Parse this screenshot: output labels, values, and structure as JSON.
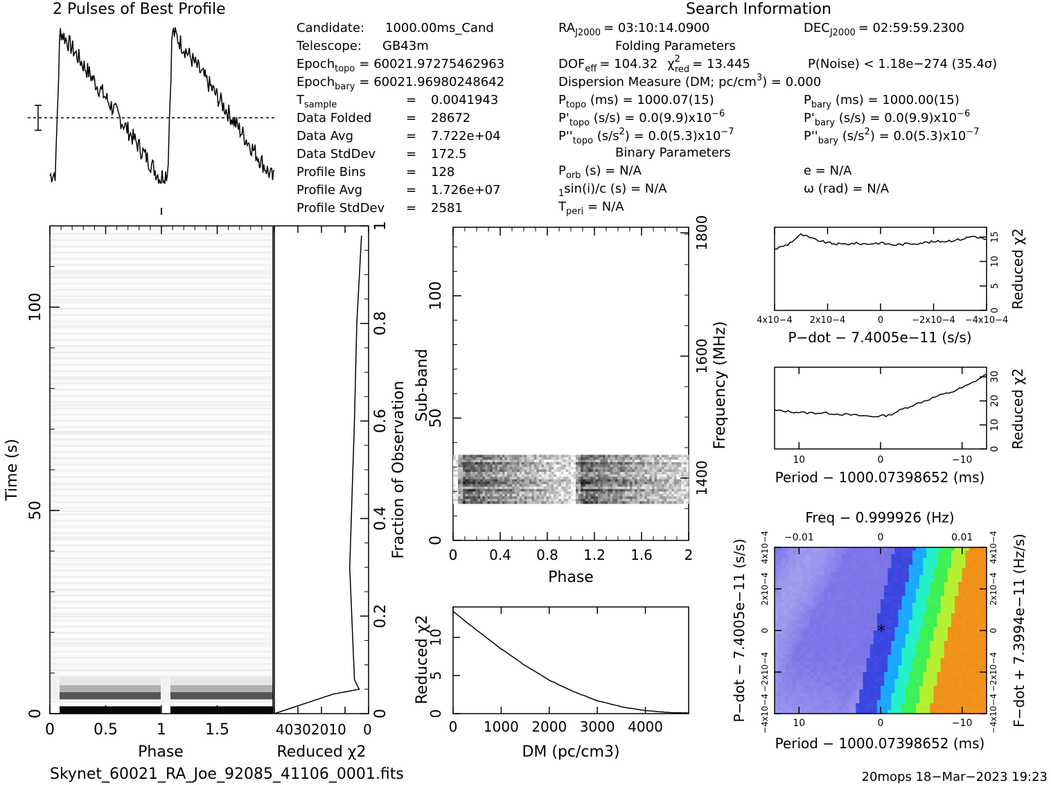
{
  "profile_title": "2 Pulses of Best Profile",
  "search_title": "Search Information",
  "candidate_info": {
    "candidate_label": "Candidate:",
    "candidate_value": "1000.00ms_Cand",
    "telescope_label": "Telescope:",
    "telescope_value": "GB43m",
    "epoch_topo_label": "Epoch",
    "epoch_topo_sub": "topo",
    "epoch_topo_value": "= 60021.97275462963",
    "epoch_bary_label": "Epoch",
    "epoch_bary_sub": "bary",
    "epoch_bary_value": "= 60021.96980248642",
    "rows": [
      {
        "label": "T",
        "sub": "sample",
        "eq": "=",
        "value": "0.0041943"
      },
      {
        "label": "Data Folded",
        "sub": "",
        "eq": "=",
        "value": "28672"
      },
      {
        "label": "Data Avg",
        "sub": "",
        "eq": "=",
        "value": "7.722e+04"
      },
      {
        "label": "Data StdDev",
        "sub": "",
        "eq": "=",
        "value": "172.5"
      },
      {
        "label": "Profile Bins",
        "sub": "",
        "eq": "=",
        "value": "128"
      },
      {
        "label": "Profile Avg",
        "sub": "",
        "eq": "=",
        "value": "1.726e+07"
      },
      {
        "label": "Profile StdDev",
        "sub": "",
        "eq": "=",
        "value": "2581"
      }
    ]
  },
  "search_info": {
    "ra_label": "RA",
    "ra_sub": "J2000",
    "ra_value": "= 03:10:14.0900",
    "dec_label": "DEC",
    "dec_sub": "J2000",
    "dec_value": "= 02:59:59.2300",
    "folding_header": "Folding Parameters",
    "dof_label": "DOF",
    "dof_sub": "eff",
    "dof_value": "= 104.32",
    "chi_label": "χ",
    "chi_sup": "2",
    "chi_sub": "red",
    "chi_value": "= 13.445",
    "pnoise": "P(Noise) < 1.18e−274   (35.4σ)",
    "dm_line": "Dispersion Measure (DM; pc/cm",
    "dm_sup": "3",
    "dm_value": ") = 0.000",
    "p_topo_label": "P",
    "p_topo_sub": "topo",
    "p_topo_value": " (ms) =  1000.07(15)",
    "p_bary_label": "P",
    "p_bary_sub": "bary",
    "p_bary_value": " (ms) =  1000.00(15)",
    "pd_topo_label": "P'",
    "pd_topo_sub": "topo",
    "pd_topo_value": " (s/s) = 0.0(9.9)x10",
    "pd_topo_exp": "−6",
    "pd_bary_label": "P'",
    "pd_bary_sub": "bary",
    "pd_bary_value": " (s/s) = 0.0(9.9)x10",
    "pd_bary_exp": "−6",
    "pdd_topo_label": "P''",
    "pdd_topo_sub": "topo",
    "pdd_topo_value": " (s/s",
    "pdd_topo_value2": ") = 0.0(5.3)x10",
    "pdd_topo_exp": "−7",
    "pdd_bary_label": "P''",
    "pdd_bary_sub": "bary",
    "pdd_bary_value": " (s/s",
    "pdd_bary_value2": ") = 0.0(5.3)x10",
    "pdd_bary_exp": "−7",
    "sq": "2",
    "binary_header": "Binary Parameters",
    "porb_label": "P",
    "porb_sub": "orb",
    "porb_value": " (s) = N/A",
    "e_line": "e = N/A",
    "a1_line": "a",
    "a1_sub": "1",
    "a1_value": "sin(i)/c (s) = N/A",
    "omega_line": "ω (rad) = N/A",
    "tperi_label": "T",
    "tperi_sub": "peri",
    "tperi_value": " = N/A"
  },
  "footer": {
    "filename": "Skynet_60021_RA_Joe_92085_41106_0001.fits",
    "stamp": "20mops 18−Mar−2023 19:23"
  },
  "chart_data": [
    {
      "id": "profile",
      "type": "line",
      "title": "2 Pulses of Best Profile",
      "xlabel": "",
      "ylabel": "",
      "xlim": [
        0,
        2
      ],
      "description_shape": "sawtooth: sharp rise at phase 0.05 and 1.05, slow decay",
      "peak_phase": [
        0.1,
        1.1
      ]
    },
    {
      "id": "time_phase",
      "type": "heatmap",
      "xlabel": "Phase",
      "ylabel": "Time (s)",
      "xlim": [
        0,
        2
      ],
      "ylim": [
        0,
        120
      ],
      "xticks": [
        "0",
        "0.5",
        "1",
        "1.5"
      ],
      "yticks": [
        "0",
        "50",
        "100"
      ],
      "strong_rows_time_s": [
        0,
        2,
        5
      ]
    },
    {
      "id": "redchi_time",
      "type": "line",
      "xlabel": "Reduced χ2",
      "ylabel": "Fraction of Observation",
      "xlim": [
        40,
        0
      ],
      "ylim": [
        0,
        1
      ],
      "xtick_labels": "40302010",
      "xtick_last": "0",
      "yticks": [
        "0",
        "0.2",
        "0.4",
        "0.6",
        "0.8",
        "1"
      ],
      "points": [
        [
          40,
          0.0
        ],
        [
          15,
          0.04
        ],
        [
          4,
          0.05
        ],
        [
          6,
          0.07
        ],
        [
          8,
          0.3
        ],
        [
          6,
          0.6
        ],
        [
          5,
          0.8
        ],
        [
          3,
          0.98
        ]
      ]
    },
    {
      "id": "subband_phase",
      "type": "heatmap",
      "xlabel": "Phase",
      "ylabel": "Sub-band",
      "y2label": "Frequency (MHz)",
      "xlim": [
        0,
        2
      ],
      "ylim": [
        0,
        128
      ],
      "xticks": [
        "0",
        "0.4",
        "0.8",
        "1.2",
        "1.6",
        "2"
      ],
      "yticks": [
        "0",
        "50",
        "100"
      ],
      "y2ticks": [
        "1400",
        "1600",
        "1800"
      ],
      "active_subbands": [
        15,
        35
      ]
    },
    {
      "id": "dm_chi",
      "type": "line",
      "xlabel": "DM (pc/cm3)",
      "ylabel": "Reduced χ2",
      "xlim": [
        0,
        4900
      ],
      "ylim": [
        0,
        14
      ],
      "xticks": [
        "0",
        "1000",
        "2000",
        "3000",
        "4000"
      ],
      "yticks": [
        "0",
        "5",
        "10"
      ],
      "x": [
        0,
        500,
        1000,
        1500,
        2000,
        2500,
        3000,
        3500,
        4000,
        4500,
        4900
      ],
      "y": [
        13.4,
        10.9,
        8.5,
        6.3,
        4.4,
        2.9,
        1.7,
        0.9,
        0.4,
        0.15,
        0.1
      ]
    },
    {
      "id": "pdot_chi",
      "type": "line",
      "xlabel": "P−dot − 7.4005e−11 (s/s)",
      "ylabel": "Reduced χ2",
      "xlim": [
        0.0004,
        -0.0004
      ],
      "ylim": [
        0,
        17
      ],
      "xticks": [
        "4x10−4",
        "2x10−4",
        "0",
        "−2x10−4",
        "−4x10−4"
      ],
      "yticks": [
        "0",
        "5",
        "10",
        "15"
      ],
      "x": [
        0.0004,
        0.00035,
        0.0003,
        0.00025,
        0.0002,
        0.00015,
        0.0001,
        5e-05,
        0,
        -5e-05,
        -0.0001,
        -0.00015,
        -0.0002,
        -0.00025,
        -0.0003,
        -0.00035,
        -0.0004
      ],
      "y": [
        12.5,
        13.5,
        15.5,
        14.5,
        13.8,
        13.5,
        13.7,
        13.6,
        13.8,
        13.4,
        13.6,
        13.8,
        14.0,
        14.2,
        14.5,
        15.2,
        14.5
      ]
    },
    {
      "id": "period_chi",
      "type": "line",
      "xlabel": "Period − 1000.07398652 (ms)",
      "ylabel": "Reduced χ2",
      "xlim": [
        13,
        -13
      ],
      "ylim": [
        0,
        34
      ],
      "xticks": [
        "10",
        "0",
        "−10"
      ],
      "yticks": [
        "0",
        "10",
        "20",
        "30"
      ],
      "x": [
        13,
        11,
        9,
        7,
        5,
        3,
        1,
        -1,
        -3,
        -5,
        -7,
        -9,
        -11,
        -13
      ],
      "y": [
        16,
        15.5,
        15,
        15,
        14.5,
        14,
        13.5,
        14,
        17,
        19.5,
        22,
        24,
        27,
        31
      ]
    },
    {
      "id": "ppdot_plane",
      "type": "heatmap",
      "title": "Freq − 0.999926 (Hz)",
      "xlabel": "Period − 1000.07398652 (ms)",
      "ylabel": "P−dot − 7.4005e−11 (s/s)",
      "y2label": "F−dot + 7.3994e−11 (Hz/s)",
      "xticks": [
        "10",
        "0",
        "−10"
      ],
      "topticks": [
        "−0.01",
        "0",
        "0.01"
      ],
      "yticks": [
        "4x10−4",
        "2x10−4",
        "0",
        "−2x10−4",
        "−4x10−4"
      ],
      "y2ticks": [
        "−4x10−4",
        "−2x10−4",
        "0",
        "2x10−4",
        "4x10−4"
      ],
      "best_marker": "*",
      "colors": [
        "#7b74e8",
        "#3a46e0",
        "#18a8ff",
        "#22f0c8",
        "#3cf054",
        "#b4f030",
        "#f09018"
      ]
    }
  ]
}
